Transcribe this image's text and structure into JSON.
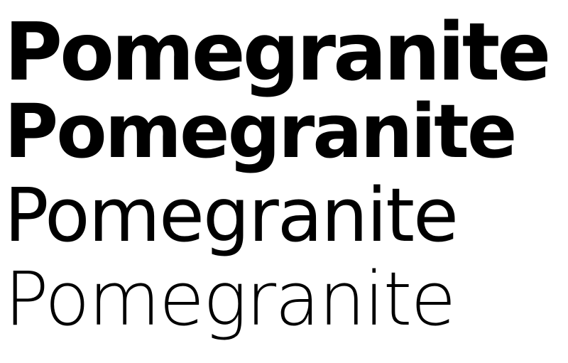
{
  "specimen": {
    "lines": [
      {
        "text": "Pomegranite",
        "weight": "black"
      },
      {
        "text": "Pomegranite",
        "weight": "bold"
      },
      {
        "text": "Pomegranite",
        "weight": "regular"
      },
      {
        "text": "Pomegranite",
        "weight": "light"
      }
    ]
  },
  "colors": {
    "background": "#ffffff",
    "text": "#000000"
  }
}
